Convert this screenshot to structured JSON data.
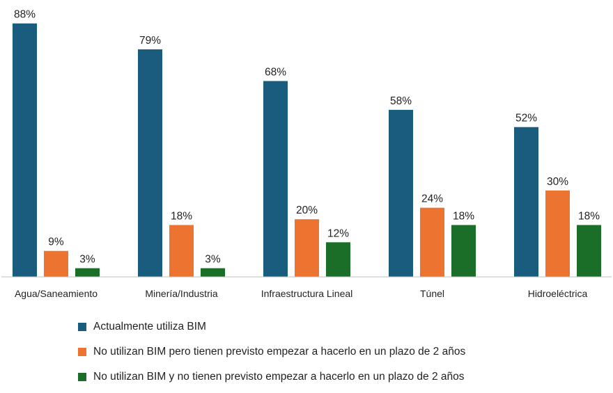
{
  "chart_data": {
    "type": "bar",
    "categories": [
      "Agua/Saneamiento",
      "Minería/Industria",
      "Infraestructura Lineal",
      "Túnel",
      "Hidroeléctrica"
    ],
    "series": [
      {
        "name": "Actualmente utiliza BIM",
        "values": [
          88,
          79,
          68,
          58,
          52
        ],
        "labels": [
          "88%",
          "79%",
          "68%",
          "58%",
          "52%"
        ],
        "color": "#195c7e"
      },
      {
        "name": "No utilizan BIM pero tienen previsto empezar a hacerlo en un plazo de 2 años",
        "values": [
          9,
          18,
          20,
          24,
          30
        ],
        "labels": [
          "9%",
          "18%",
          "20%",
          "24%",
          "30%"
        ],
        "color": "#ed7331"
      },
      {
        "name": "No utilizan BIM y no tienen previsto empezar a hacerlo en un plazo de 2 años",
        "values": [
          3,
          3,
          12,
          18,
          18
        ],
        "labels": [
          "3%",
          "3%",
          "12%",
          "18%",
          "18%"
        ],
        "color": "#1a6e28"
      }
    ],
    "ylim": [
      0,
      100
    ],
    "grid": false,
    "legend_position": "bottom-left"
  }
}
